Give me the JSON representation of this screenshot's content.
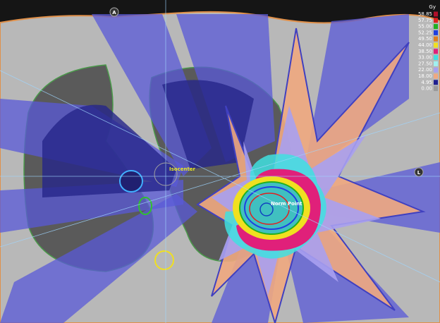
{
  "orientation_markers": {
    "anterior": "A",
    "left": "L"
  },
  "point_labels": {
    "isocenter": "Isocenter",
    "norm_point": "Norm Point"
  },
  "dose_legend": {
    "unit": "Gy",
    "entries": [
      {
        "label": "58.85",
        "color": "#b0102a"
      },
      {
        "label": "57.75",
        "color": "#e02020"
      },
      {
        "label": "55.00",
        "color": "#20b020"
      },
      {
        "label": "52.25",
        "color": "#2040e0"
      },
      {
        "label": "49.50",
        "color": "#e08020"
      },
      {
        "label": "44.00",
        "color": "#f0e020"
      },
      {
        "label": "38.50",
        "color": "#e0207a"
      },
      {
        "label": "33.00",
        "color": "#40e0e0"
      },
      {
        "label": "27.50",
        "color": "#a0f0f0"
      },
      {
        "label": "22.00",
        "color": "#a8a0f0"
      },
      {
        "label": "18.00",
        "color": "#f0a880"
      },
      {
        "label": "4.95",
        "color": "#202090"
      },
      {
        "label": "0.00",
        "color": "#9a9a9a"
      }
    ]
  }
}
